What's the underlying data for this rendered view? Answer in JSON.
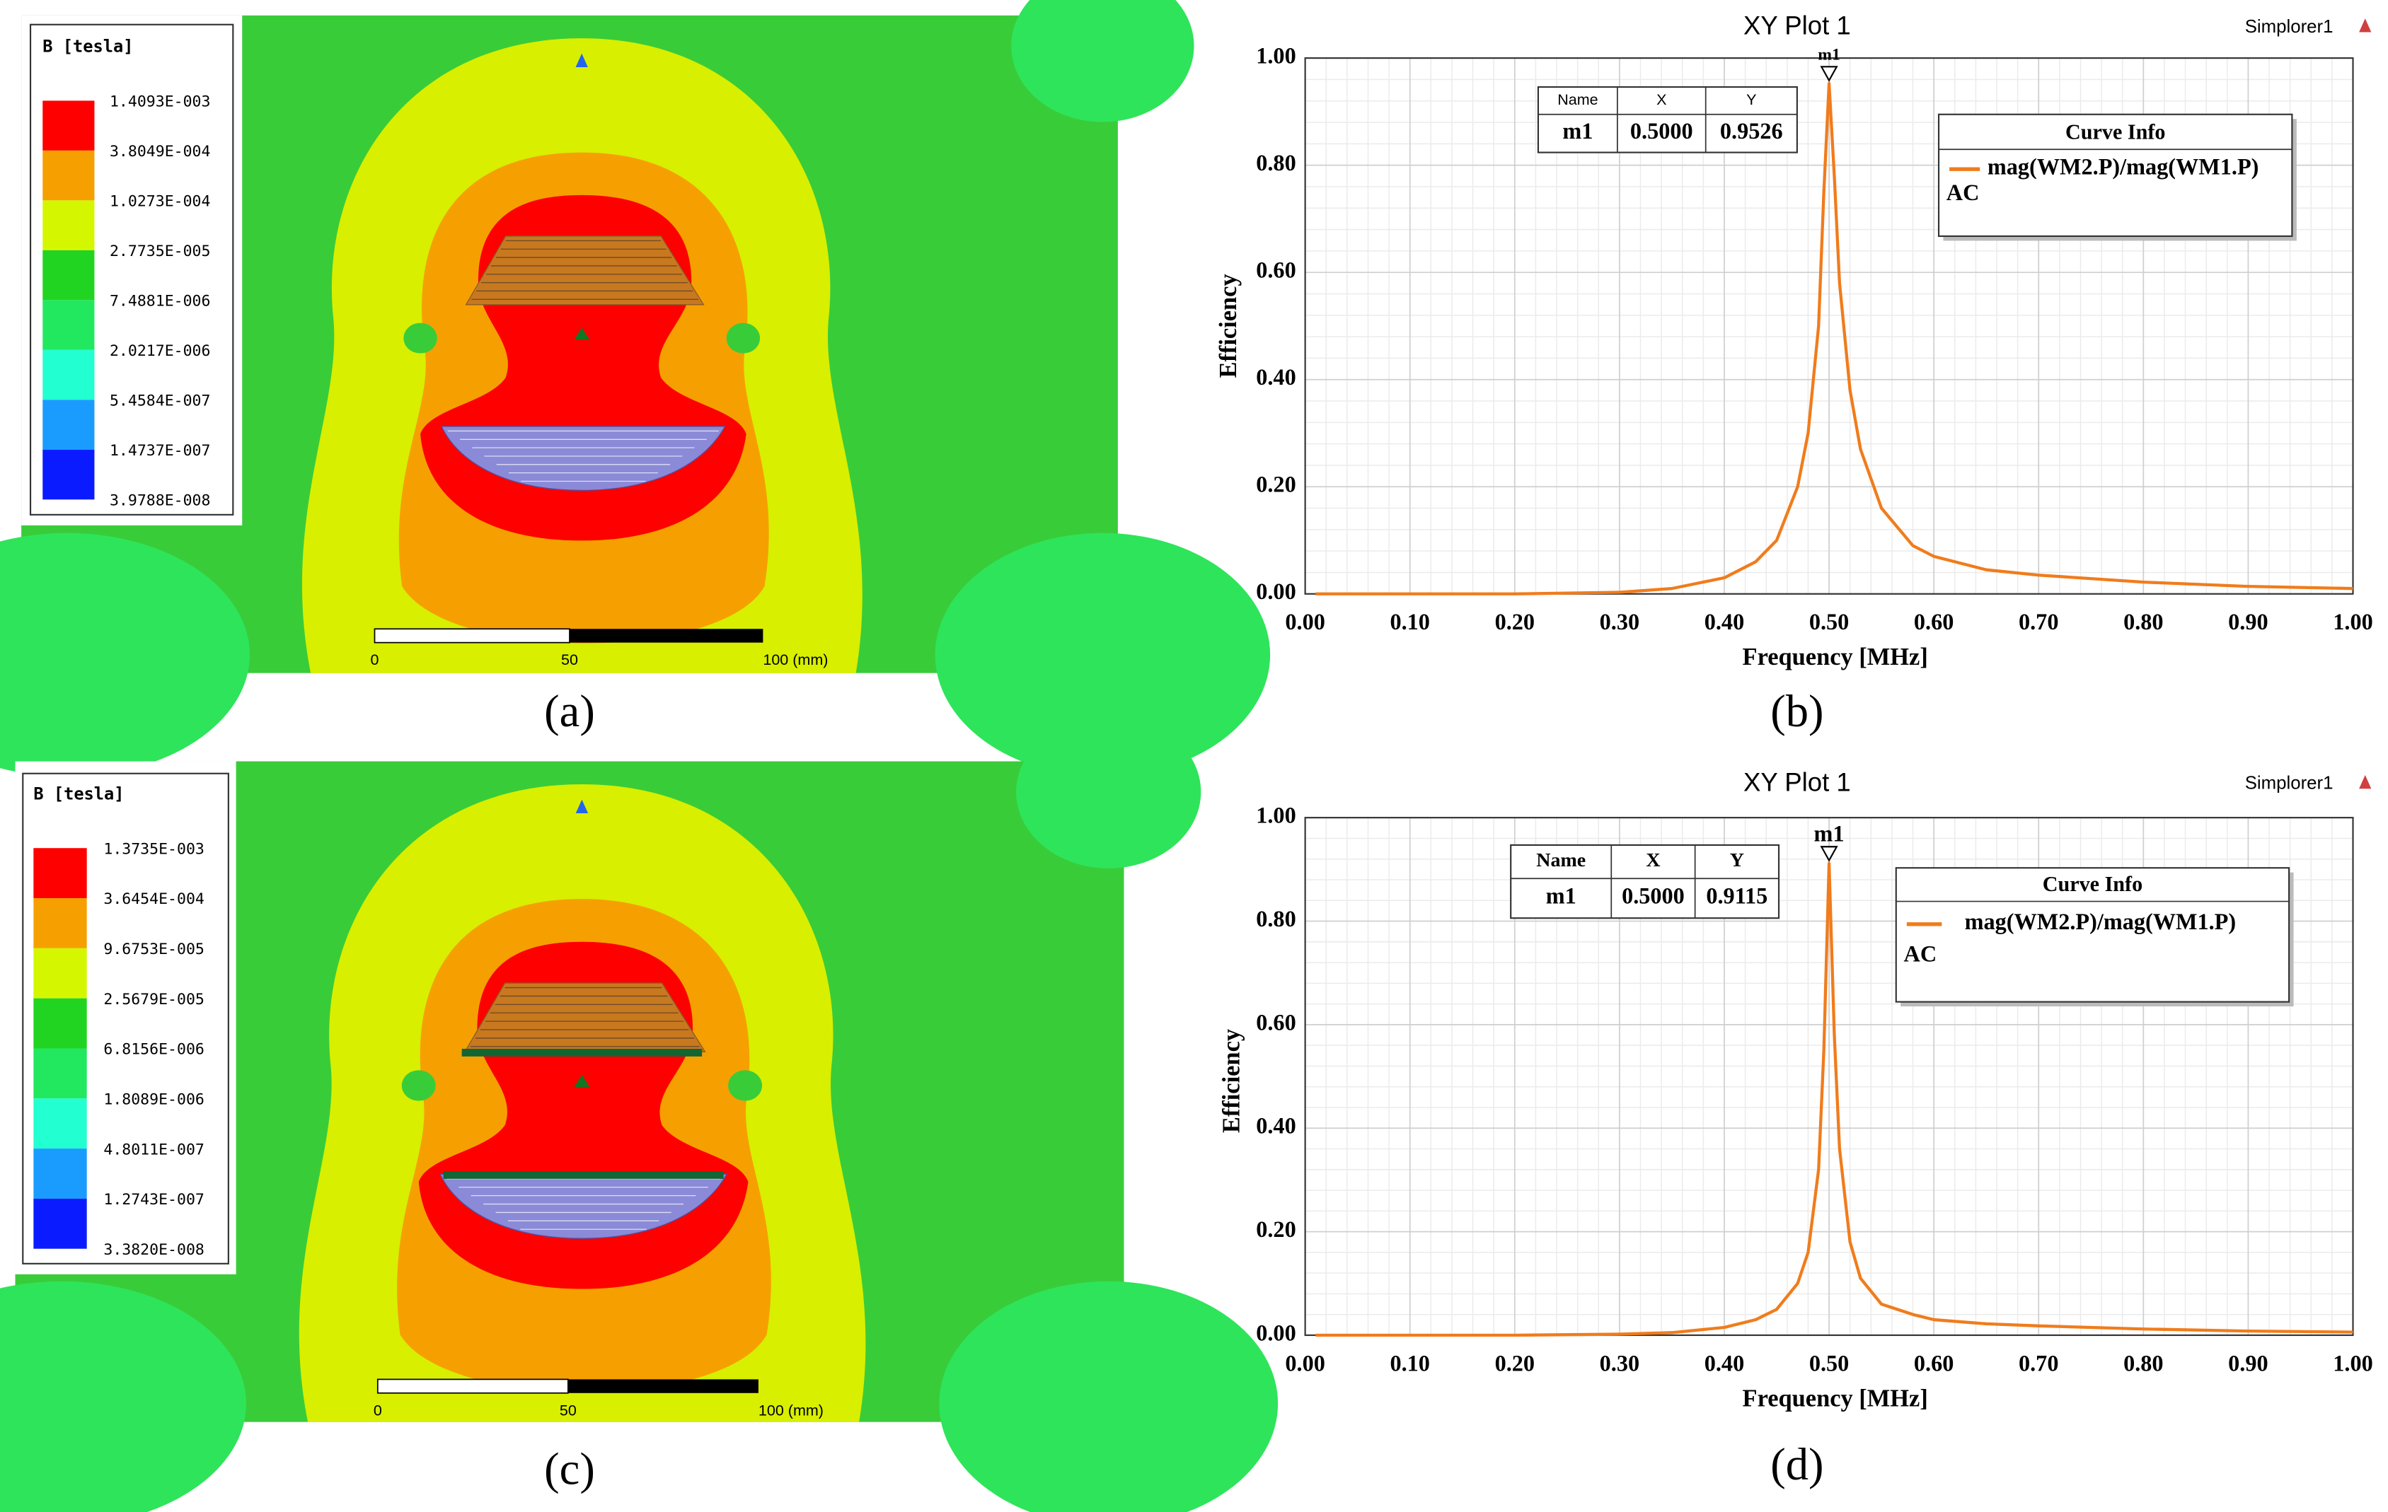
{
  "panels": [
    {
      "label": "(a)",
      "legend_title": "B [tesla]",
      "levels": [
        "1.4093E-003",
        "3.8049E-004",
        "1.0273E-004",
        "2.7735E-005",
        "7.4881E-006",
        "2.0217E-006",
        "5.4584E-007",
        "1.4737E-007",
        "3.9788E-008"
      ],
      "scale": [
        "0",
        "50",
        "100 (mm)"
      ]
    },
    {
      "label": "(c)",
      "legend_title": "B [tesla]",
      "levels": [
        "1.3735E-003",
        "3.6454E-004",
        "9.6753E-005",
        "2.5679E-005",
        "6.8156E-006",
        "1.8089E-006",
        "4.8011E-007",
        "1.2743E-007",
        "3.3820E-008"
      ],
      "scale": [
        "0",
        "50",
        "100 (mm)"
      ]
    }
  ],
  "chart_data": [
    {
      "type": "line",
      "title": "XY Plot 1",
      "source": "Simplorer1",
      "panel_label": "(b)",
      "x_label": "Frequency [MHz]",
      "y_label": "Efficiency",
      "xlim": [
        0,
        1
      ],
      "ylim": [
        0,
        1
      ],
      "xticks": [
        {
          "value": 0,
          "label": "0.00"
        },
        {
          "value": 0.1,
          "label": "0.10"
        },
        {
          "value": 0.2,
          "label": "0.20"
        },
        {
          "value": 0.3,
          "label": "0.30"
        },
        {
          "value": 0.4,
          "label": "0.40"
        },
        {
          "value": 0.5,
          "label": "0.50"
        },
        {
          "value": 0.6,
          "label": "0.60"
        },
        {
          "value": 0.7,
          "label": "0.70"
        },
        {
          "value": 0.8,
          "label": "0.80"
        },
        {
          "value": 0.9,
          "label": "0.90"
        },
        {
          "value": 1,
          "label": "1.00"
        }
      ],
      "yticks": [
        {
          "value": 0,
          "label": "0.00"
        },
        {
          "value": 0.2,
          "label": "0.20"
        },
        {
          "value": 0.4,
          "label": "0.40"
        },
        {
          "value": 0.6,
          "label": "0.60"
        },
        {
          "value": 0.8,
          "label": "0.80"
        },
        {
          "value": 1,
          "label": "1.00"
        }
      ],
      "grid": true,
      "legend_title": "Curve Info",
      "legend_note": "AC",
      "series": [
        {
          "name": "mag(WM2.P)/mag(WM1.P)",
          "color": "#f07c1c",
          "x": [
            0.01,
            0.1,
            0.2,
            0.3,
            0.35,
            0.4,
            0.43,
            0.45,
            0.47,
            0.48,
            0.49,
            0.495,
            0.5,
            0.505,
            0.51,
            0.52,
            0.53,
            0.55,
            0.58,
            0.6,
            0.65,
            0.7,
            0.8,
            0.9,
            1.0
          ],
          "values": [
            0,
            0,
            0,
            0.003,
            0.01,
            0.03,
            0.06,
            0.1,
            0.2,
            0.3,
            0.5,
            0.75,
            0.9526,
            0.78,
            0.58,
            0.38,
            0.27,
            0.16,
            0.09,
            0.07,
            0.045,
            0.035,
            0.022,
            0.014,
            0.01
          ]
        }
      ],
      "marker": {
        "name": "m1",
        "headers": [
          "Name",
          "X",
          "Y"
        ],
        "x": {
          "value": 0.5,
          "label": "0.5000"
        },
        "y": 0.9526
      }
    },
    {
      "type": "line",
      "title": "XY Plot 1",
      "source": "Simplorer1",
      "panel_label": "(d)",
      "x_label": "Frequency [MHz]",
      "y_label": "Efficiency",
      "xlim": [
        0,
        1
      ],
      "ylim": [
        0,
        1
      ],
      "xticks": [
        {
          "value": 0,
          "label": "0.00"
        },
        {
          "value": 0.1,
          "label": "0.10"
        },
        {
          "value": 0.2,
          "label": "0.20"
        },
        {
          "value": 0.3,
          "label": "0.30"
        },
        {
          "value": 0.4,
          "label": "0.40"
        },
        {
          "value": 0.5,
          "label": "0.50"
        },
        {
          "value": 0.6,
          "label": "0.60"
        },
        {
          "value": 0.7,
          "label": "0.70"
        },
        {
          "value": 0.8,
          "label": "0.80"
        },
        {
          "value": 0.9,
          "label": "0.90"
        },
        {
          "value": 1,
          "label": "1.00"
        }
      ],
      "yticks": [
        {
          "value": 0,
          "label": "0.00"
        },
        {
          "value": 0.2,
          "label": "0.20"
        },
        {
          "value": 0.4,
          "label": "0.40"
        },
        {
          "value": 0.6,
          "label": "0.60"
        },
        {
          "value": 0.8,
          "label": "0.80"
        },
        {
          "value": 1,
          "label": "1.00"
        }
      ],
      "grid": true,
      "legend_title": "Curve Info",
      "legend_note": "AC",
      "series": [
        {
          "name": "mag(WM2.P)/mag(WM1.P)",
          "color": "#f07c1c",
          "x": [
            0.01,
            0.1,
            0.2,
            0.3,
            0.35,
            0.4,
            0.43,
            0.45,
            0.47,
            0.48,
            0.49,
            0.495,
            0.5,
            0.505,
            0.51,
            0.52,
            0.53,
            0.55,
            0.58,
            0.6,
            0.65,
            0.7,
            0.8,
            0.9,
            1.0
          ],
          "values": [
            0,
            0,
            0,
            0.002,
            0.005,
            0.015,
            0.03,
            0.05,
            0.1,
            0.16,
            0.32,
            0.55,
            0.9115,
            0.58,
            0.36,
            0.18,
            0.11,
            0.06,
            0.04,
            0.03,
            0.022,
            0.018,
            0.012,
            0.008,
            0.006
          ]
        }
      ],
      "marker": {
        "name": "m1",
        "headers": [
          "Name",
          "X",
          "Y"
        ],
        "x": {
          "value": 0.5,
          "label": "0.5000"
        },
        "y": 0.9115
      }
    }
  ]
}
